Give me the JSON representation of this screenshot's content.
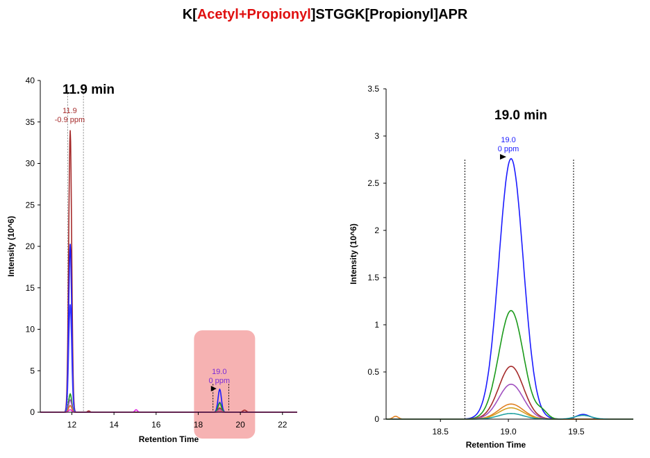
{
  "title": {
    "prefix": "K[",
    "highlight": "Acetyl+Propionyl",
    "suffix": "]STGGK[Propionyl]APR",
    "highlight_color": "#e01010"
  },
  "chart_data": [
    {
      "type": "line",
      "xlabel": "Retention Time",
      "ylabel": "Intensity (10^6)",
      "xlim": [
        10.5,
        22.7
      ],
      "ylim": [
        0,
        40
      ],
      "xticks": [
        "12",
        "14",
        "16",
        "18",
        "20",
        "22"
      ],
      "yticks": [
        "0",
        "5",
        "10",
        "15",
        "20",
        "25",
        "30",
        "35",
        "40"
      ],
      "annotation": "11.9 min",
      "peak_labels": [
        {
          "rt": "11.9",
          "ppm": "-0.9 ppm",
          "x": 11.9,
          "color": "#a52a2a"
        },
        {
          "rt": "19.0",
          "ppm": "0 ppm",
          "x": 19.0,
          "color": "#7b2ad6"
        }
      ],
      "boundaries": [
        11.8,
        12.55
      ],
      "boundaries2": [
        18.7,
        19.45
      ],
      "highlight_range": [
        17.8,
        20.7
      ],
      "series": [
        {
          "name": "trace-darkred",
          "color": "#a52a2a",
          "peak1": 34,
          "peak2": 0.5
        },
        {
          "name": "trace-blue",
          "color": "#1a1aff",
          "peak1": 20.3,
          "peak2": 2.75
        },
        {
          "name": "trace-blue2",
          "color": "#3a3aff",
          "peak1": 13,
          "peak2": 1.2
        },
        {
          "name": "trace-green",
          "color": "#1a9a1a",
          "peak1": 2.2,
          "peak2": 1.1
        },
        {
          "name": "trace-purple",
          "color": "#a050c0",
          "peak1": 1.5,
          "peak2": 0.35
        },
        {
          "name": "trace-orange",
          "color": "#e08020",
          "peak1": 0.8,
          "peak2": 0.15
        },
        {
          "name": "trace-magenta",
          "color": "#e020e0",
          "peak1": 0.3,
          "peak2": 0.05
        }
      ]
    },
    {
      "type": "line",
      "xlabel": "Retention Time",
      "ylabel": "Intensity (10^6)",
      "xlim": [
        18.1,
        19.92
      ],
      "ylim": [
        0,
        3.5
      ],
      "xticks": [
        "18.5",
        "19.0",
        "19.5"
      ],
      "yticks": [
        "0",
        "0.5",
        "1",
        "1.5",
        "2",
        "2.5",
        "3",
        "3.5"
      ],
      "annotation": "19.0 min",
      "peak_labels": [
        {
          "rt": "19.0",
          "ppm": "0 ppm",
          "x": 19.0,
          "color": "#1a1aff"
        }
      ],
      "boundaries": [
        18.68,
        19.48
      ],
      "series": [
        {
          "name": "blue",
          "color": "#1a1aff",
          "peak": 2.76
        },
        {
          "name": "green",
          "color": "#1a9a1a",
          "peak": 1.15
        },
        {
          "name": "darkred",
          "color": "#a52a2a",
          "peak": 0.56
        },
        {
          "name": "purple",
          "color": "#a050c0",
          "peak": 0.37
        },
        {
          "name": "orange",
          "color": "#e08020",
          "peak": 0.16
        },
        {
          "name": "gold",
          "color": "#d4a020",
          "peak": 0.12
        },
        {
          "name": "teal",
          "color": "#20a0a0",
          "peak": 0.06
        }
      ]
    }
  ]
}
